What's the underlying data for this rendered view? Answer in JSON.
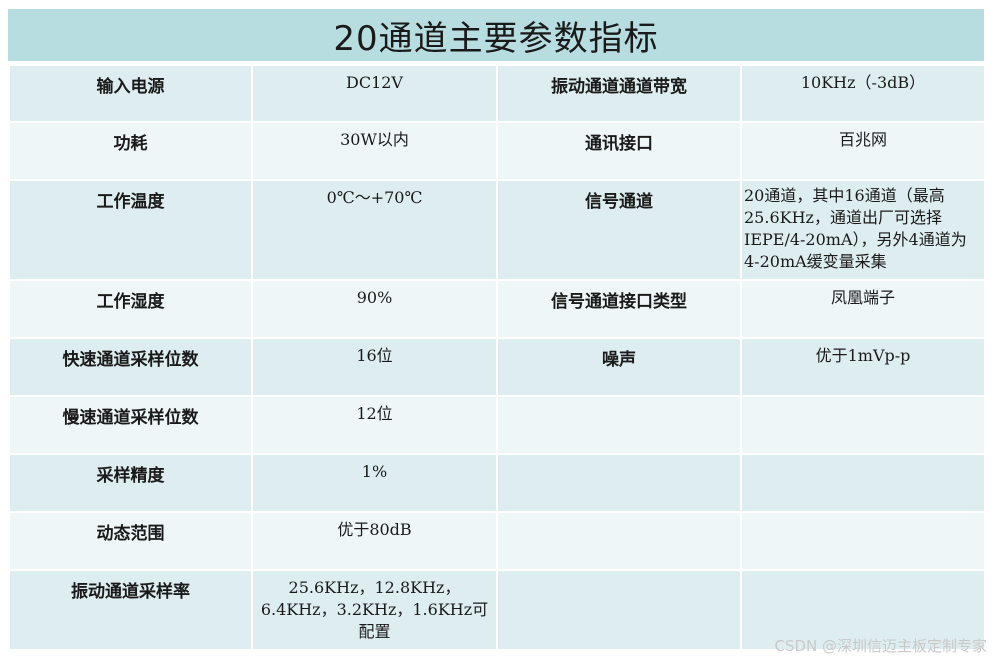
{
  "title": "20通道主要参数指标",
  "rows": [
    {
      "label1": "输入电源",
      "value1": "DC12V",
      "label2": "振动通道通道带宽",
      "value2": "10KHz（-3dB）"
    },
    {
      "label1": "功耗",
      "value1": "30W以内",
      "label2": "通讯接口",
      "value2": "百兆网"
    },
    {
      "label1": "工作温度",
      "value1": "0℃～+70℃",
      "label2": "信号通道",
      "value2": "20通道，其中16通道（最高25.6KHz，通道出厂可选择IEPE/4-20mA），另外4通道为4-20mA缓变量采集"
    },
    {
      "label1": "工作湿度",
      "value1": "90%",
      "label2": "信号通道接口类型",
      "value2": "凤凰端子"
    },
    {
      "label1": "快速通道采样位数",
      "value1": "16位",
      "label2": "噪声",
      "value2": "优于1mVp-p"
    },
    {
      "label1": "慢速通道采样位数",
      "value1": "12位",
      "label2": "",
      "value2": ""
    },
    {
      "label1": "采样精度",
      "value1": "1%",
      "label2": "",
      "value2": ""
    },
    {
      "label1": "动态范围",
      "value1": "优于80dB",
      "label2": "",
      "value2": ""
    },
    {
      "label1": "振动通道采样率",
      "value1": "25.6KHz，12.8KHz，6.4KHz，3.2KHz，1.6KHz可配置",
      "label2": "",
      "value2": ""
    }
  ],
  "watermark": "CSDN @深圳信迈主板定制专家"
}
